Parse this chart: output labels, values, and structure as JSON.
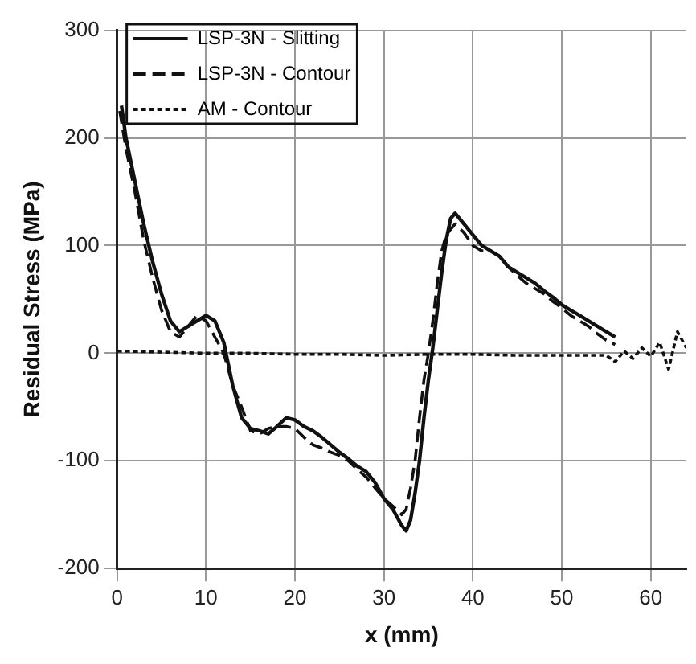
{
  "chart_data": {
    "type": "line",
    "xlabel": "x (mm)",
    "ylabel": "Residual Stress (MPa)",
    "xlim": [
      0,
      64
    ],
    "xticks": [
      0,
      10,
      20,
      30,
      40,
      50,
      60
    ],
    "ylim": [
      -200,
      300
    ],
    "yticks": [
      -200,
      -100,
      0,
      100,
      200,
      300
    ],
    "grid": true,
    "legend": "top",
    "marker": "none",
    "series": [
      {
        "name": "LSP-3N - Slitting",
        "color": "#111111",
        "line_style": "solid",
        "x": [
          0.5,
          1,
          2,
          3,
          4,
          5,
          6,
          7,
          8,
          9,
          10,
          11,
          12,
          13,
          14,
          15,
          16,
          17,
          18,
          19,
          20,
          21,
          22,
          23,
          24,
          25,
          26,
          27,
          28,
          29,
          30,
          31,
          32,
          32.5,
          33,
          33.5,
          34,
          34.5,
          35,
          35.5,
          36,
          36.5,
          37,
          37.5,
          38,
          39,
          40,
          41,
          42,
          43,
          44,
          45,
          46,
          47,
          48,
          49,
          50,
          51,
          52,
          53,
          54,
          55,
          56
        ],
        "values": [
          230,
          200,
          160,
          120,
          85,
          55,
          30,
          20,
          25,
          30,
          35,
          30,
          10,
          -30,
          -60,
          -70,
          -72,
          -75,
          -68,
          -60,
          -62,
          -68,
          -72,
          -78,
          -85,
          -92,
          -98,
          -105,
          -110,
          -120,
          -135,
          -145,
          -160,
          -165,
          -155,
          -130,
          -100,
          -60,
          -25,
          5,
          40,
          75,
          105,
          125,
          130,
          120,
          110,
          100,
          95,
          90,
          80,
          75,
          70,
          65,
          58,
          52,
          45,
          40,
          35,
          30,
          25,
          20,
          15
        ]
      },
      {
        "name": "LSP-3N - Contour",
        "color": "#111111",
        "line_style": "dashed",
        "x": [
          0.3,
          1,
          2,
          3,
          4,
          5,
          6,
          7,
          8,
          9,
          10,
          11,
          12,
          13,
          14,
          15,
          16,
          17,
          18,
          19,
          20,
          21,
          22,
          23,
          24,
          25,
          26,
          27,
          28,
          29,
          30,
          31,
          32,
          32.5,
          33,
          33.5,
          34,
          34.5,
          35,
          35.5,
          36,
          36.5,
          37,
          38,
          39,
          40,
          41,
          42,
          43,
          44,
          45,
          46,
          47,
          48,
          49,
          50,
          51,
          52,
          53,
          54,
          55,
          56
        ],
        "values": [
          225,
          190,
          150,
          105,
          70,
          40,
          20,
          15,
          25,
          35,
          30,
          15,
          0,
          -30,
          -50,
          -72,
          -75,
          -70,
          -68,
          -68,
          -70,
          -78,
          -85,
          -88,
          -92,
          -95,
          -100,
          -108,
          -115,
          -125,
          -135,
          -142,
          -150,
          -145,
          -125,
          -100,
          -60,
          -25,
          0,
          30,
          65,
          95,
          110,
          120,
          112,
          100,
          95,
          95,
          90,
          80,
          72,
          65,
          60,
          55,
          48,
          42,
          35,
          30,
          25,
          18,
          12,
          8
        ]
      },
      {
        "name": "AM - Contour",
        "color": "#111111",
        "line_style": "dotted",
        "x": [
          0,
          5,
          10,
          15,
          20,
          25,
          30,
          35,
          40,
          45,
          50,
          55,
          56,
          57,
          58,
          59,
          60,
          61,
          62,
          63,
          64
        ],
        "values": [
          2,
          1,
          0,
          0,
          -1,
          -1,
          -2,
          -1,
          -1,
          -2,
          -2,
          -2,
          -8,
          2,
          -5,
          5,
          -3,
          10,
          -15,
          20,
          5
        ]
      }
    ]
  }
}
